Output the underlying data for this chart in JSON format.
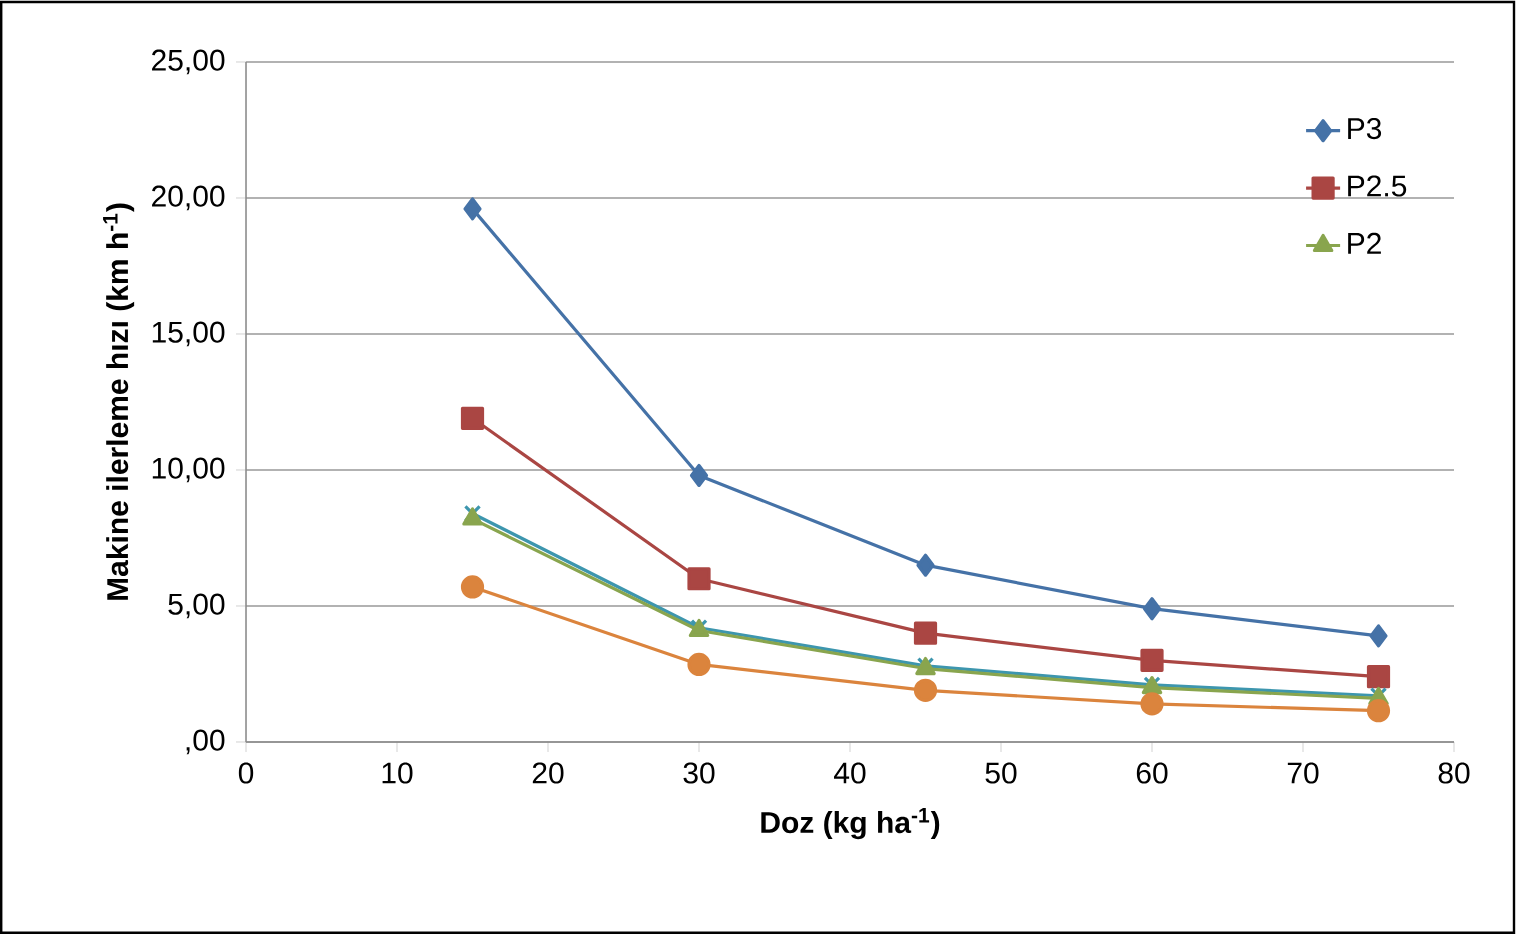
{
  "chart_data": {
    "type": "line",
    "xlabel": "Doz (kg ha$^{-1}$)",
    "ylabel": "Makine ilerleme hızı (km h$^{-1}$)",
    "xlim": [
      0,
      80
    ],
    "xticks": [
      0,
      10,
      20,
      30,
      40,
      50,
      60,
      70,
      80
    ],
    "ylim": [
      0,
      25
    ],
    "yticks": [
      {
        "value": 0,
        "label": ",00"
      },
      {
        "value": 5,
        "label": "5,00"
      },
      {
        "value": 10,
        "label": "10,00"
      },
      {
        "value": 15,
        "label": "15,00"
      },
      {
        "value": 20,
        "label": "20,00"
      },
      {
        "value": 25,
        "label": "25,00"
      }
    ],
    "grid": "y",
    "legend": "top right",
    "line_style": "solid",
    "series": [
      {
        "name": "P3",
        "color": "#4572a7",
        "marker": "diamond",
        "x": [
          15,
          30,
          45,
          60,
          75
        ],
        "values": [
          19.6,
          9.8,
          6.5,
          4.9,
          3.9
        ]
      },
      {
        "name": "P2.5",
        "color": "#aa4643",
        "marker": "square",
        "x": [
          15,
          30,
          45,
          60,
          75
        ],
        "values": [
          11.9,
          6.0,
          4.0,
          3.0,
          2.4
        ]
      },
      {
        "color": "#3d96ae",
        "marker": "cross",
        "x": [
          15,
          30,
          45,
          60,
          75
        ],
        "values": [
          8.4,
          4.2,
          2.8,
          2.1,
          1.7
        ]
      },
      {
        "name": "P2",
        "color": "#89a54e",
        "marker": "triangle",
        "x": [
          15,
          30,
          45,
          60,
          75
        ],
        "values": [
          8.2,
          4.1,
          2.7,
          2.0,
          1.6
        ]
      },
      {
        "color": "#db843d",
        "marker": "circle",
        "x": [
          15,
          30,
          45,
          60,
          75
        ],
        "values": [
          5.7,
          2.85,
          1.9,
          1.4,
          1.15
        ]
      }
    ]
  }
}
